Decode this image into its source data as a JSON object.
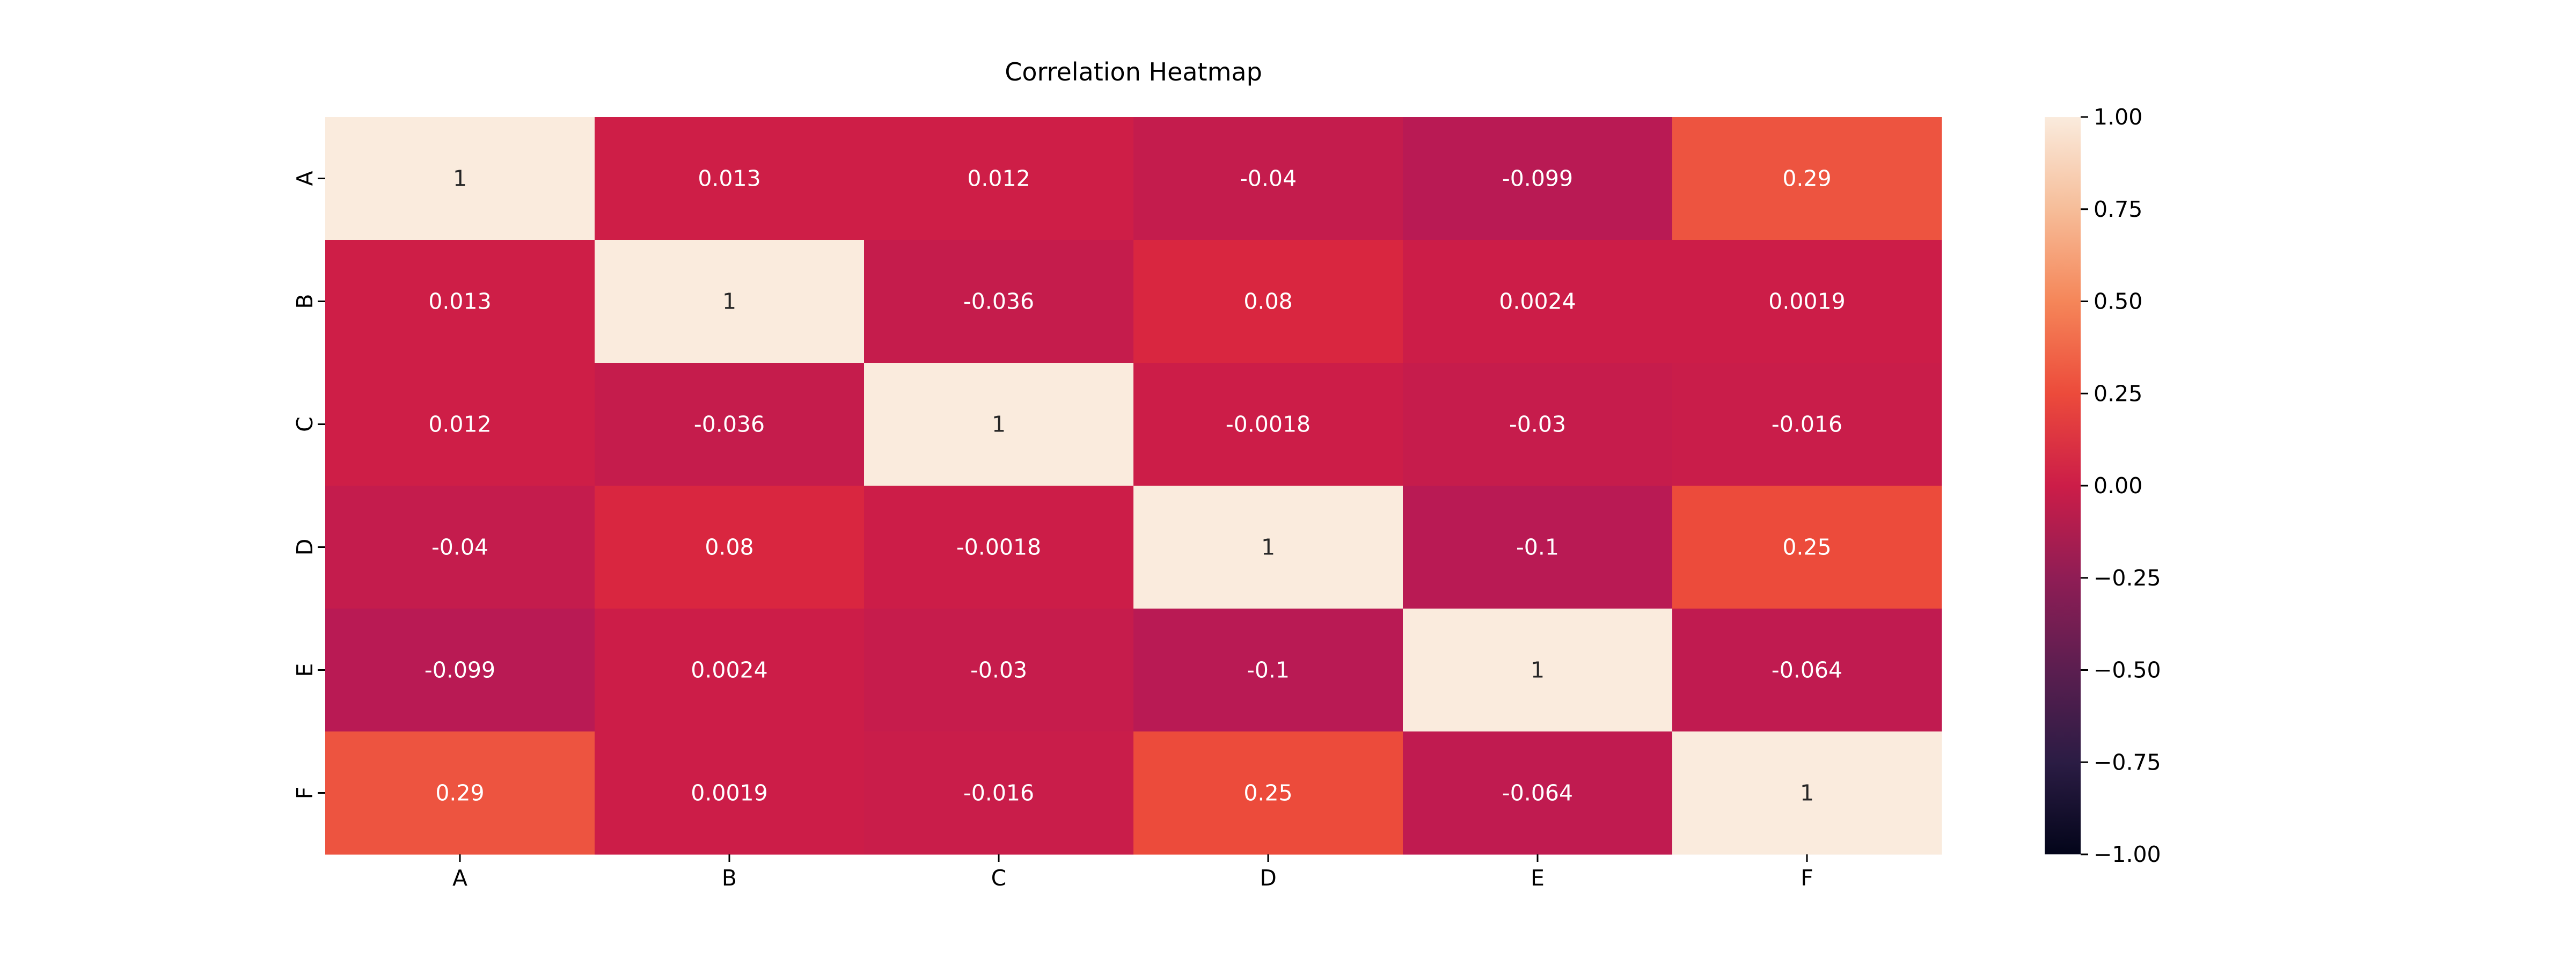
{
  "chart_data": {
    "type": "heatmap",
    "title": "Correlation Heatmap",
    "xlabel": "",
    "ylabel": "",
    "x_categories": [
      "A",
      "B",
      "C",
      "D",
      "E",
      "F"
    ],
    "y_categories": [
      "A",
      "B",
      "C",
      "D",
      "E",
      "F"
    ],
    "values": [
      [
        1,
        0.013,
        0.012,
        -0.04,
        -0.099,
        0.29
      ],
      [
        0.013,
        1,
        -0.036,
        0.08,
        0.0024,
        0.0019
      ],
      [
        0.012,
        -0.036,
        1,
        -0.0018,
        -0.03,
        -0.016
      ],
      [
        -0.04,
        0.08,
        -0.0018,
        1,
        -0.1,
        0.25
      ],
      [
        -0.099,
        0.0024,
        -0.03,
        -0.1,
        1,
        -0.064
      ],
      [
        0.29,
        0.0019,
        -0.016,
        0.25,
        -0.064,
        1
      ]
    ],
    "cell_labels": [
      [
        "1",
        "0.013",
        "0.012",
        "-0.04",
        "-0.099",
        "0.29"
      ],
      [
        "0.013",
        "1",
        "-0.036",
        "0.08",
        "0.0024",
        "0.0019"
      ],
      [
        "0.012",
        "-0.036",
        "1",
        "-0.0018",
        "-0.03",
        "-0.016"
      ],
      [
        "-0.04",
        "0.08",
        "-0.0018",
        "1",
        "-0.1",
        "0.25"
      ],
      [
        "-0.099",
        "0.0024",
        "-0.03",
        "-0.1",
        "1",
        "-0.064"
      ],
      [
        "0.29",
        "0.0019",
        "-0.016",
        "0.25",
        "-0.064",
        "1"
      ]
    ],
    "colorbar": {
      "range": [
        -1.0,
        1.0
      ],
      "ticks": [
        1.0,
        0.75,
        0.5,
        0.25,
        0.0,
        -0.25,
        -0.5,
        -0.75,
        -1.0
      ],
      "tick_labels": [
        "1.00",
        "0.75",
        "0.50",
        "0.25",
        "0.00",
        "−0.25",
        "−0.50",
        "−0.75",
        "−1.00"
      ],
      "colormap": "rocket"
    },
    "legend": "none",
    "grid": false
  }
}
